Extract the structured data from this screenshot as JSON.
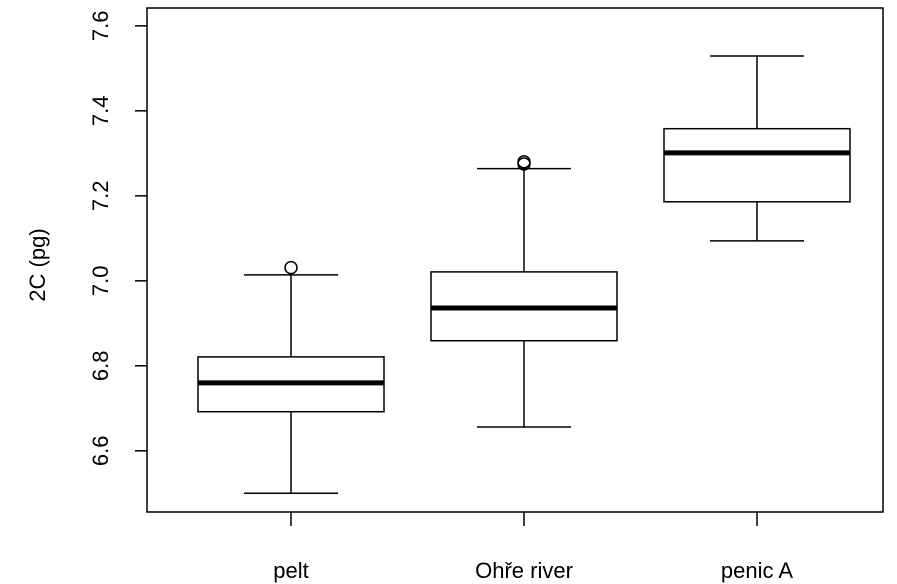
{
  "chart_data": {
    "type": "boxplot",
    "y_label": "2C (pg)",
    "categories": [
      "pelt",
      "Ohře river",
      "penic A"
    ],
    "low": [
      6.5,
      6.656,
      7.094
    ],
    "q1": [
      6.692,
      6.859,
      7.186
    ],
    "median": [
      6.76,
      6.936,
      7.301
    ],
    "q3": [
      6.821,
      7.021,
      7.358
    ],
    "high": [
      7.014,
      7.264,
      7.529
    ],
    "outliers": [
      [
        7.031
      ],
      [
        7.28,
        7.275
      ],
      []
    ],
    "color": "#000000",
    "fill": "#ffffff",
    "ylim": [
      6.456,
      7.642
    ],
    "yticks": [
      6.6,
      6.8,
      {
        "value": 7,
        "label": "7.0"
      },
      7.2,
      7.4,
      7.6
    ]
  }
}
